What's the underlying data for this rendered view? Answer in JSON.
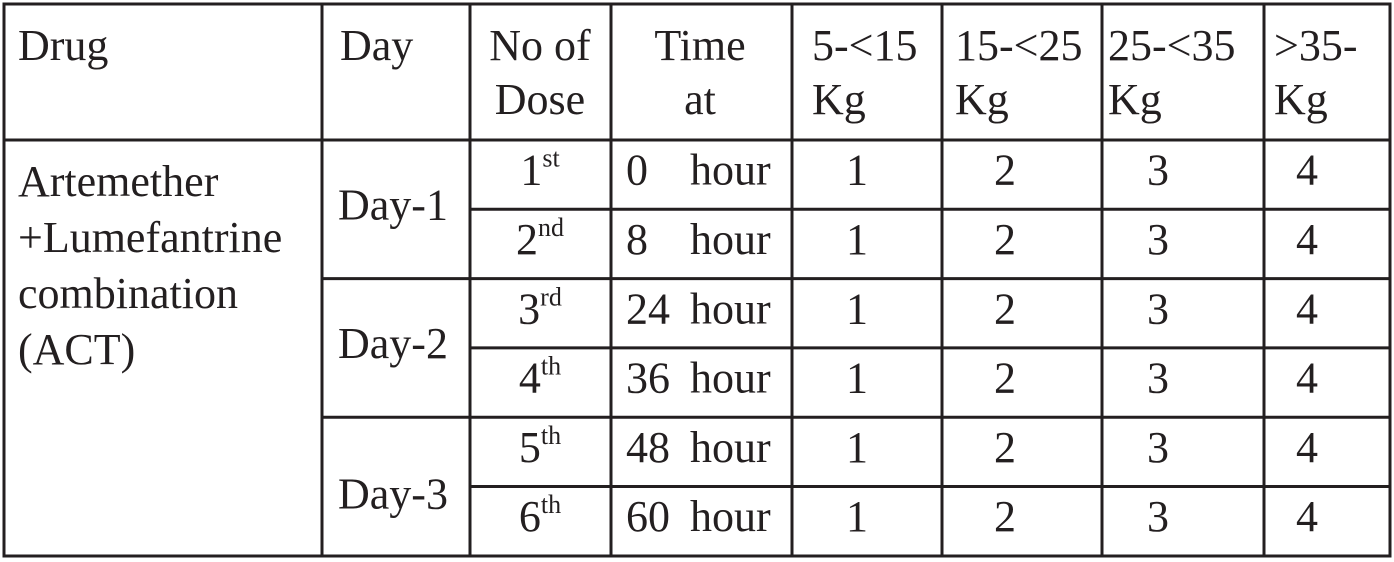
{
  "table": {
    "header": [
      [
        "Drug"
      ],
      [
        "Day"
      ],
      [
        "No of",
        "Dose"
      ],
      [
        "Time",
        "at"
      ],
      [
        "5-<15",
        "Kg"
      ],
      [
        "15-<25",
        "Kg"
      ],
      [
        "25-<35",
        "Kg"
      ],
      [
        ">35-",
        "Kg"
      ]
    ],
    "drug": [
      "Artemether",
      "+Lumefantrine",
      "combination",
      "(ACT)"
    ],
    "days": [
      "Day-1",
      "Day-2",
      "Day-3"
    ],
    "rows": [
      {
        "dose": "1",
        "suffix": "st",
        "time": "0",
        "unit": "hour",
        "doses": [
          1,
          2,
          3,
          4
        ]
      },
      {
        "dose": "2",
        "suffix": "nd",
        "time": "8",
        "unit": "hour",
        "doses": [
          1,
          2,
          3,
          4
        ]
      },
      {
        "dose": "3",
        "suffix": "rd",
        "time": "24",
        "unit": "hour",
        "doses": [
          1,
          2,
          3,
          4
        ]
      },
      {
        "dose": "4",
        "suffix": "th",
        "time": "36",
        "unit": "hour",
        "doses": [
          1,
          2,
          3,
          4
        ]
      },
      {
        "dose": "5",
        "suffix": "th",
        "time": "48",
        "unit": "hour",
        "doses": [
          1,
          2,
          3,
          4
        ]
      },
      {
        "dose": "6",
        "suffix": "th",
        "time": "60",
        "unit": "hour",
        "doses": [
          1,
          2,
          3,
          4
        ]
      }
    ]
  }
}
